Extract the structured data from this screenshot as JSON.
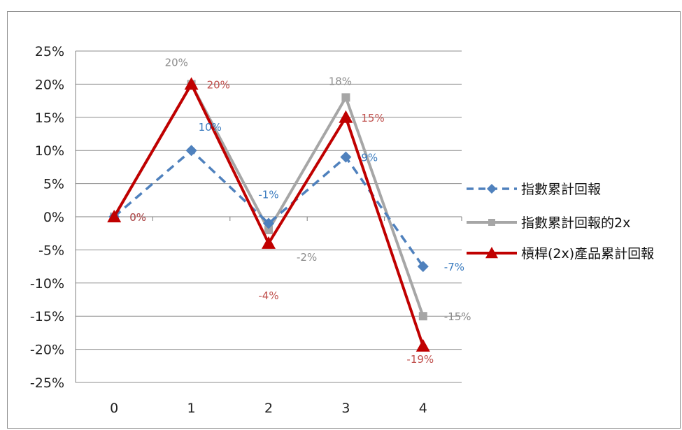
{
  "chart_data": {
    "type": "line",
    "x": [
      0,
      1,
      2,
      3,
      4
    ],
    "xticks": [
      "0",
      "1",
      "2",
      "3",
      "4"
    ],
    "ylim": [
      -25,
      25
    ],
    "ystep": 5,
    "yticks": [
      "25%",
      "20%",
      "15%",
      "10%",
      "5%",
      "0%",
      "-5%",
      "-10%",
      "-15%",
      "-20%",
      "-25%"
    ],
    "grid": true,
    "legend_position": "right",
    "series": [
      {
        "name": "指數累計回報",
        "values": [
          0,
          10,
          -1,
          9,
          -7.5
        ],
        "labels": [
          "0%",
          "10%",
          "-1%",
          "9%",
          "-7%"
        ],
        "color": "#4f81bd",
        "label_color": "#3a7bbf",
        "dash": "dashed",
        "marker": "diamond"
      },
      {
        "name": "指數累計回報的2x",
        "values": [
          0,
          20,
          -2,
          18,
          -15
        ],
        "labels": [
          "0%",
          "20%",
          "-2%",
          "18%",
          "-15%"
        ],
        "color": "#a6a6a6",
        "label_color": "#8c8c8c",
        "dash": "solid",
        "marker": "square"
      },
      {
        "name": "槓桿(2x)產品累計回報",
        "values": [
          0,
          20,
          -4,
          15,
          -19.5
        ],
        "labels": [
          "0%",
          "20%",
          "-4%",
          "15%",
          "-19%"
        ],
        "color": "#c00000",
        "label_color": "#c0504d",
        "dash": "solid",
        "marker": "triangle"
      }
    ]
  }
}
